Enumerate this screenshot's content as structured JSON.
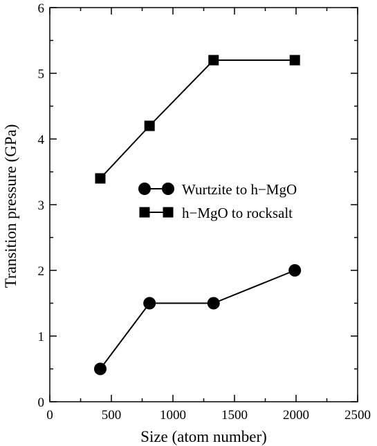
{
  "chart_data": {
    "type": "line",
    "xlabel": "Size (atom number)",
    "ylabel": "Transition pressure (GPa)",
    "xlim": [
      0,
      2500
    ],
    "ylim": [
      0,
      6
    ],
    "xticks": [
      0,
      500,
      1000,
      1500,
      2000,
      2500
    ],
    "yticks": [
      0,
      1,
      2,
      3,
      4,
      5,
      6
    ],
    "grid": false,
    "legend_position": "center-right",
    "series": [
      {
        "name": "Wurtzite to h−MgO",
        "marker": "circle",
        "color": "#000000",
        "x": [
          410,
          810,
          1330,
          1990
        ],
        "y": [
          0.5,
          1.5,
          1.5,
          2.0
        ]
      },
      {
        "name": "h−MgO to rocksalt",
        "marker": "square",
        "color": "#000000",
        "x": [
          410,
          810,
          1330,
          1990
        ],
        "y": [
          3.4,
          4.2,
          5.2,
          5.2
        ]
      }
    ]
  }
}
